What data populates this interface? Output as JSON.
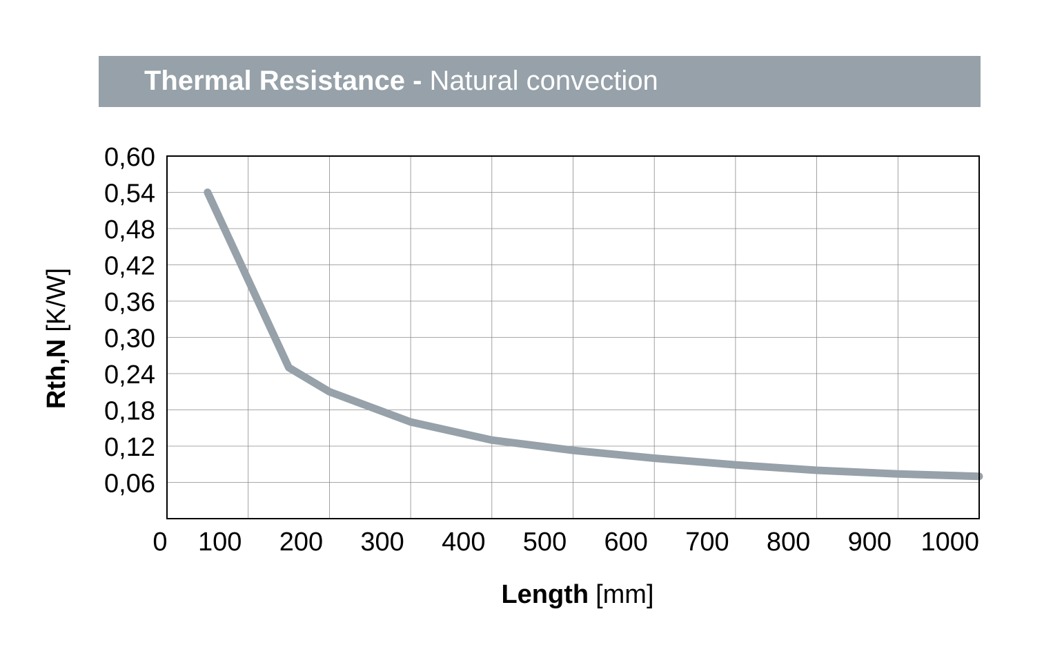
{
  "header": {
    "title_bold": "Thermal Resistance -",
    "title_light": "Natural convection"
  },
  "chart_data": {
    "type": "line",
    "title": "Thermal Resistance - Natural convection",
    "xlabel_bold": "Length",
    "xlabel_unit": "[mm]",
    "ylabel_bold": "Rth,N",
    "ylabel_unit": "[K/W]",
    "xlim": [
      0,
      1000
    ],
    "ylim": [
      0,
      0.6
    ],
    "x_ticks": [
      "0",
      "100",
      "200",
      "300",
      "400",
      "500",
      "600",
      "700",
      "800",
      "900",
      "1000"
    ],
    "y_ticks": [
      "0,06",
      "0,12",
      "0,18",
      "0,24",
      "0,30",
      "0,36",
      "0,42",
      "0,48",
      "0,54",
      "0,60"
    ],
    "grid": true,
    "series": [
      {
        "x": [
          50,
          150,
          200,
          300,
          400,
          500,
          600,
          700,
          800,
          900,
          1000
        ],
        "y": [
          0.54,
          0.25,
          0.21,
          0.16,
          0.13,
          0.113,
          0.1,
          0.089,
          0.08,
          0.074,
          0.07
        ]
      }
    ],
    "colors": {
      "line": "#96a1a9",
      "band": "#96a1a9",
      "grid": "#8a8a8a",
      "axis": "#000000"
    }
  }
}
